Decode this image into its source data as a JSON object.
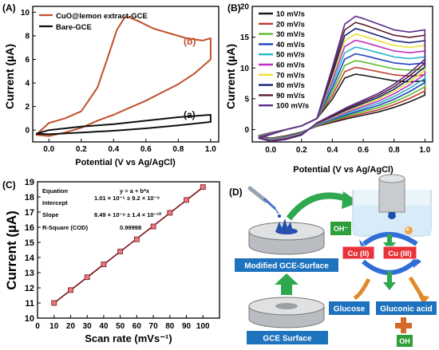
{
  "figure": {
    "panel_labels": [
      "(A)",
      "(B)",
      "(C)",
      "(D)"
    ]
  },
  "chart_data": [
    {
      "panel": "A",
      "type": "line",
      "xlabel": "Potential (V vs Ag/AgCl)",
      "ylabel": "Current (µA)",
      "xlim": [
        -0.1,
        1.05
      ],
      "ylim": [
        -1,
        10.5
      ],
      "xticks": [
        0.0,
        0.2,
        0.4,
        0.6,
        0.8,
        1.0
      ],
      "yticks": [
        0,
        2,
        4,
        6,
        8,
        10
      ],
      "legend": "top-left",
      "series": [
        {
          "name": "CuO@lemon extract-GCE",
          "color": "#c0502b",
          "annotation": "(b)",
          "x": [
            -0.08,
            0.0,
            0.1,
            0.2,
            0.3,
            0.36,
            0.42,
            0.47,
            0.5,
            0.56,
            0.65,
            0.75,
            0.85,
            0.95,
            1.0,
            1.0,
            0.9,
            0.8,
            0.7,
            0.6,
            0.5,
            0.4,
            0.3,
            0.2,
            0.1,
            0.0,
            -0.08
          ],
          "values": [
            -0.4,
            0.6,
            1.0,
            1.6,
            3.6,
            6.0,
            8.5,
            9.6,
            9.55,
            9.2,
            8.6,
            8.2,
            7.8,
            7.6,
            7.8,
            6.0,
            4.8,
            3.9,
            3.2,
            2.5,
            1.9,
            1.3,
            0.8,
            0.2,
            -0.2,
            -0.5,
            -0.4
          ]
        },
        {
          "name": "Bare-GCE",
          "color": "#111111",
          "annotation": "(a)",
          "x": [
            -0.08,
            0.0,
            0.2,
            0.4,
            0.6,
            0.8,
            0.95,
            1.0,
            1.0,
            0.8,
            0.6,
            0.4,
            0.2,
            0.0,
            -0.08
          ],
          "values": [
            -0.3,
            0.0,
            0.3,
            0.5,
            0.8,
            1.1,
            1.25,
            1.3,
            0.7,
            0.4,
            0.15,
            -0.05,
            -0.2,
            -0.35,
            -0.3
          ]
        }
      ]
    },
    {
      "panel": "B",
      "type": "line",
      "xlabel": "Potential (V vs Ag/AgCl)",
      "ylabel": "Current (µA)",
      "xlim": [
        -0.12,
        1.05
      ],
      "ylim": [
        -2,
        20
      ],
      "xticks": [
        0.0,
        0.2,
        0.4,
        0.6,
        0.8,
        1.0
      ],
      "yticks": [
        0,
        5,
        10,
        15,
        20
      ],
      "legend": "top-left",
      "series": [
        {
          "name": "10 mV/s",
          "color": "#1a1a1a",
          "peak": 9.0
        },
        {
          "name": "20 mV/s",
          "color": "#c0392b",
          "peak": 10.1
        },
        {
          "name": "30 mV/s",
          "color": "#5dbb2c",
          "peak": 11.2
        },
        {
          "name": "40 mV/s",
          "color": "#1f3fbf",
          "peak": 12.3
        },
        {
          "name": "50 mV/s",
          "color": "#27b6c9",
          "peak": 13.4
        },
        {
          "name": "60 mV/s",
          "color": "#c22fc0",
          "peak": 14.5
        },
        {
          "name": "70 mV/s",
          "color": "#e7e03a",
          "peak": 15.5
        },
        {
          "name": "80 mV/s",
          "color": "#16237a",
          "peak": 16.4
        },
        {
          "name": "90 mV/s",
          "color": "#5a1f2b",
          "peak": 17.4
        },
        {
          "name": "100 mV/s",
          "color": "#5a2a8a",
          "peak": 18.4
        }
      ]
    },
    {
      "panel": "C",
      "type": "scatter",
      "xlabel": "Scan rate (mVs⁻¹)",
      "ylabel": "Current (µA)",
      "xlim": [
        0,
        110
      ],
      "ylim": [
        10,
        19
      ],
      "xticks": [
        0,
        10,
        20,
        30,
        40,
        50,
        60,
        70,
        80,
        90,
        100
      ],
      "yticks": [
        10,
        11,
        12,
        13,
        14,
        15,
        16,
        17,
        18,
        19
      ],
      "x": [
        10,
        20,
        30,
        40,
        50,
        60,
        70,
        80,
        90,
        100
      ],
      "y": [
        11.0,
        11.85,
        12.7,
        13.55,
        14.4,
        15.2,
        16.05,
        16.95,
        17.8,
        18.65
      ],
      "marker_color": "#e57b82",
      "line_color": "#7a0f14",
      "fit_table": [
        [
          "Equation",
          "y = a + b*x"
        ],
        [
          "Intercept",
          "1.01 × 10⁻⁵ ± 9.2 × 10⁻⁹"
        ],
        [
          "Slope",
          "8.49 × 10⁻⁸ ± 1.4 × 10⁻¹⁰"
        ],
        [
          "R-Square (COD)",
          "0.99998"
        ]
      ]
    }
  ],
  "schematic": {
    "panel": "D",
    "labels": {
      "modified_surface": "Modified GCE-Surface",
      "gce_surface": "GCE Surface",
      "oh_minus": "OH⁻",
      "cu2": "Cu (II)",
      "cu3": "Cu (III)",
      "glucose": "Glucose",
      "gluconic": "Gluconic acid",
      "oh": "OH"
    },
    "colors": {
      "label_box": "#1e73be",
      "cu_box": "#e8333a",
      "oh_box": "#2e9e3a",
      "arrow_green": "#2fa84f",
      "arrow_blue": "#2f6fd6",
      "arrow_orange": "#e08a2c",
      "plus_orange": "#d4692a"
    }
  }
}
